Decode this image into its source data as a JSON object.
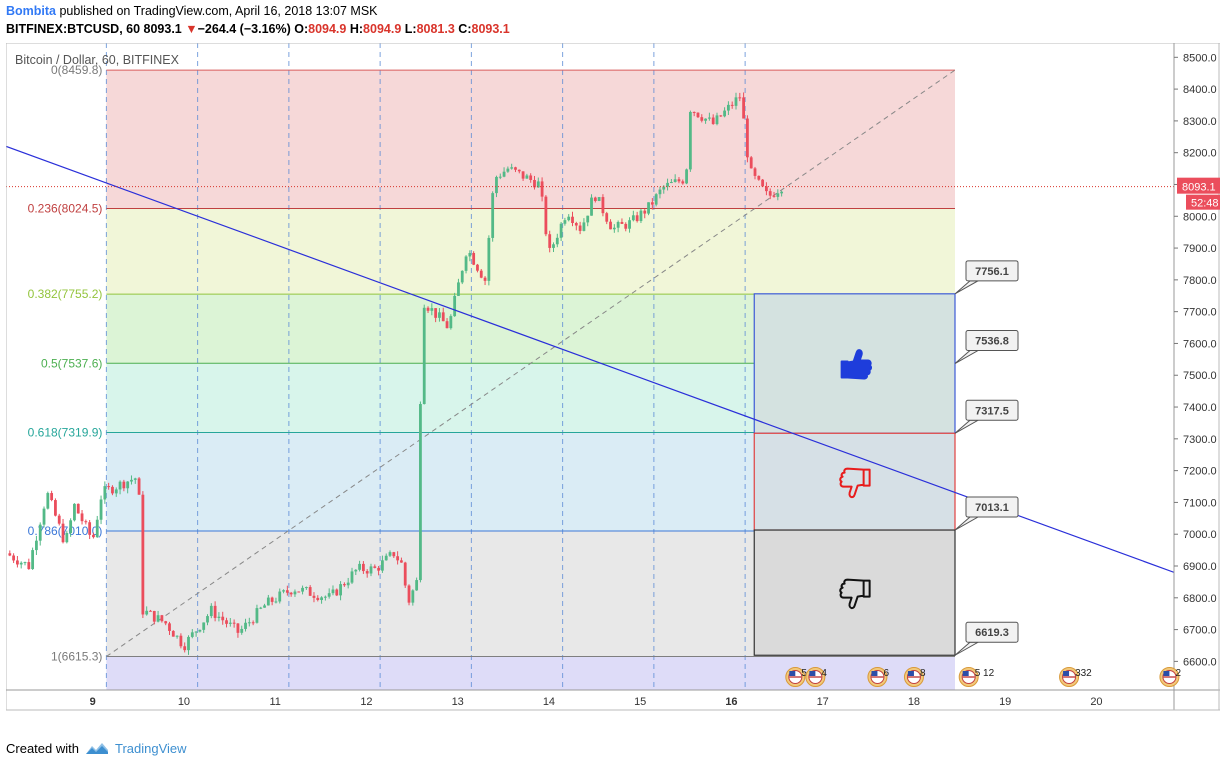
{
  "header": {
    "author": "Bombita",
    "published": " published on TradingView.com, April 16, 2018 13:07 MSK",
    "symbol": "BITFINEX:BTCUSD, 60",
    "last": "8093.1",
    "change_arrow": "▼",
    "change": "−264.4 (−3.16%)",
    "o_label": "O:",
    "o": "8094.9",
    "h_label": "H:",
    "h": "8094.9",
    "l_label": "L:",
    "l": "8081.3",
    "c_label": "C:",
    "c": "8093.1"
  },
  "footer": {
    "created_with": "Created with",
    "brand": "TradingView",
    "logo_icon": "tradingview-logo-icon"
  },
  "chart_data": {
    "type": "candlestick",
    "title": "Bitcoin / Dollar, 60, BITFINEX",
    "ylim": [
      6510,
      8545
    ],
    "yticks": [
      8500,
      8400,
      8300,
      8200,
      8100,
      8000,
      7900,
      7800,
      7700,
      7600,
      7500,
      7400,
      7300,
      7200,
      7100,
      7000,
      6900,
      6800,
      6700,
      6600
    ],
    "ytick_labels": [
      "8500.0",
      "8400.0",
      "8300.0",
      "8200.0",
      "8100.0",
      "8000.0",
      "7900.0",
      "7800.0",
      "7700.0",
      "7600.0",
      "7500.0",
      "7400.0",
      "7300.0",
      "7200.0",
      "7100.0",
      "7000.0",
      "6900.0",
      "6800.0",
      "6700.0",
      "6600.0"
    ],
    "xlim": [
      8.05,
      20.85
    ],
    "xticks": [
      9,
      10,
      11,
      12,
      13,
      14,
      15,
      16,
      17,
      18,
      19,
      20
    ],
    "xtick_labels": [
      "9",
      "10",
      "11",
      "12",
      "13",
      "14",
      "15",
      "16",
      "17",
      "18",
      "19",
      "20"
    ],
    "bold_xticks": [
      "9",
      "16"
    ],
    "session_lines": [
      9.15,
      10.15,
      11.15,
      12.15,
      13.15,
      14.15,
      15.15,
      16.15
    ],
    "up_color": "#53b987",
    "down_color": "#eb4d5c",
    "last_price": 8093.1,
    "last_price_label": "8093.1",
    "countdown_label": "52:48",
    "price_key_points": [
      [
        8.05,
        6940
      ],
      [
        8.3,
        6900
      ],
      [
        8.5,
        7130
      ],
      [
        8.7,
        6970
      ],
      [
        8.8,
        7090
      ],
      [
        9.0,
        6980
      ],
      [
        9.1,
        7130
      ],
      [
        9.4,
        7170
      ],
      [
        9.5,
        7180
      ],
      [
        9.55,
        6760
      ],
      [
        9.8,
        6720
      ],
      [
        10.0,
        6650
      ],
      [
        10.3,
        6760
      ],
      [
        10.6,
        6690
      ],
      [
        10.9,
        6780
      ],
      [
        11.2,
        6830
      ],
      [
        11.6,
        6800
      ],
      [
        11.9,
        6890
      ],
      [
        12.1,
        6890
      ],
      [
        12.3,
        6940
      ],
      [
        12.4,
        6900
      ],
      [
        12.45,
        6780
      ],
      [
        12.55,
        6850
      ],
      [
        12.58,
        6990
      ],
      [
        12.6,
        7740
      ],
      [
        12.9,
        7650
      ],
      [
        13.1,
        7900
      ],
      [
        13.3,
        7800
      ],
      [
        13.4,
        8120
      ],
      [
        13.55,
        8150
      ],
      [
        13.9,
        8100
      ],
      [
        14.0,
        7880
      ],
      [
        14.2,
        8020
      ],
      [
        14.35,
        7960
      ],
      [
        14.5,
        8070
      ],
      [
        14.7,
        7960
      ],
      [
        14.9,
        7980
      ],
      [
        15.1,
        8030
      ],
      [
        15.25,
        8090
      ],
      [
        15.5,
        8120
      ],
      [
        15.55,
        8340
      ],
      [
        15.8,
        8290
      ],
      [
        16.0,
        8350
      ],
      [
        16.1,
        8380
      ],
      [
        16.2,
        8140
      ],
      [
        16.4,
        8060
      ],
      [
        16.55,
        8095
      ]
    ],
    "fib_levels": [
      {
        "ratio": "0",
        "price": 8459.8,
        "label": "0(8459.8)",
        "line": "#d95c5c",
        "fill": "#f4d1d1",
        "text": "#7a7a7a"
      },
      {
        "ratio": "0.236",
        "price": 8024.5,
        "label": "0.236(8024.5)",
        "line": "#c04040",
        "fill": "#eef4d1",
        "text": "#c04040"
      },
      {
        "ratio": "0.382",
        "price": 7755.2,
        "label": "0.382(7755.2)",
        "line": "#93c43c",
        "fill": "#d6f2cf",
        "text": "#93c43c"
      },
      {
        "ratio": "0.5",
        "price": 7537.6,
        "label": "0.5(7537.6)",
        "line": "#4caf50",
        "fill": "#d1f3e8",
        "text": "#4caf50"
      },
      {
        "ratio": "0.618",
        "price": 7319.9,
        "label": "0.618(7319.9)",
        "line": "#26a69a",
        "fill": "#d3e9f3",
        "text": "#26a69a"
      },
      {
        "ratio": "0.786",
        "price": 7010.0,
        "label": "0.786(7010.0)",
        "line": "#3c78d8",
        "fill": "#e4e4e4",
        "text": "#3c78d8"
      },
      {
        "ratio": "1",
        "price": 6615.3,
        "label": "1(6615.3)",
        "line": "#7f7f7f",
        "fill": "#d8d6f7",
        "text": "#7a7a7a"
      }
    ],
    "fib_x_range": [
      9.15,
      18.45
    ],
    "fib_trend": [
      [
        9.15,
        6615.3
      ],
      [
        18.45,
        8459.8
      ]
    ],
    "trendline": [
      [
        8.05,
        8220
      ],
      [
        20.85,
        6880
      ]
    ],
    "trendline_color": "#2a2fd9",
    "zone_boxes": [
      {
        "top": 7756.1,
        "bottom": 7317.5,
        "border": "#3d5bd6",
        "fill": "#d4e2e0",
        "icon": "thumbs-up-icon",
        "color": "#1e3ddb"
      },
      {
        "top": 7317.5,
        "bottom": 7013.1,
        "border": "#e04040",
        "fill": "#d6e0e6",
        "icon": "thumbs-down-icon",
        "color": "#e81c1c"
      },
      {
        "top": 7013.1,
        "bottom": 6619.3,
        "border": "#333333",
        "fill": "#dadada",
        "icon": "thumbs-down-icon",
        "color": "#111111"
      }
    ],
    "zone_x_range": [
      16.25,
      18.45
    ],
    "price_callouts": [
      {
        "price": 7756.1,
        "label": "7756.1"
      },
      {
        "price": 7536.8,
        "label": "7536.8"
      },
      {
        "price": 7317.5,
        "label": "7317.5"
      },
      {
        "price": 7013.1,
        "label": "7013.1"
      },
      {
        "price": 6619.3,
        "label": "6619.3"
      }
    ],
    "event_badges": [
      {
        "x": 16.7,
        "label": "5 3"
      },
      {
        "x": 16.92,
        "label": "4"
      },
      {
        "x": 17.6,
        "label": "6"
      },
      {
        "x": 18.0,
        "label": "8"
      },
      {
        "x": 18.6,
        "label": "5 12"
      },
      {
        "x": 19.7,
        "label": "332"
      },
      {
        "x": 20.8,
        "label": "2"
      }
    ]
  }
}
